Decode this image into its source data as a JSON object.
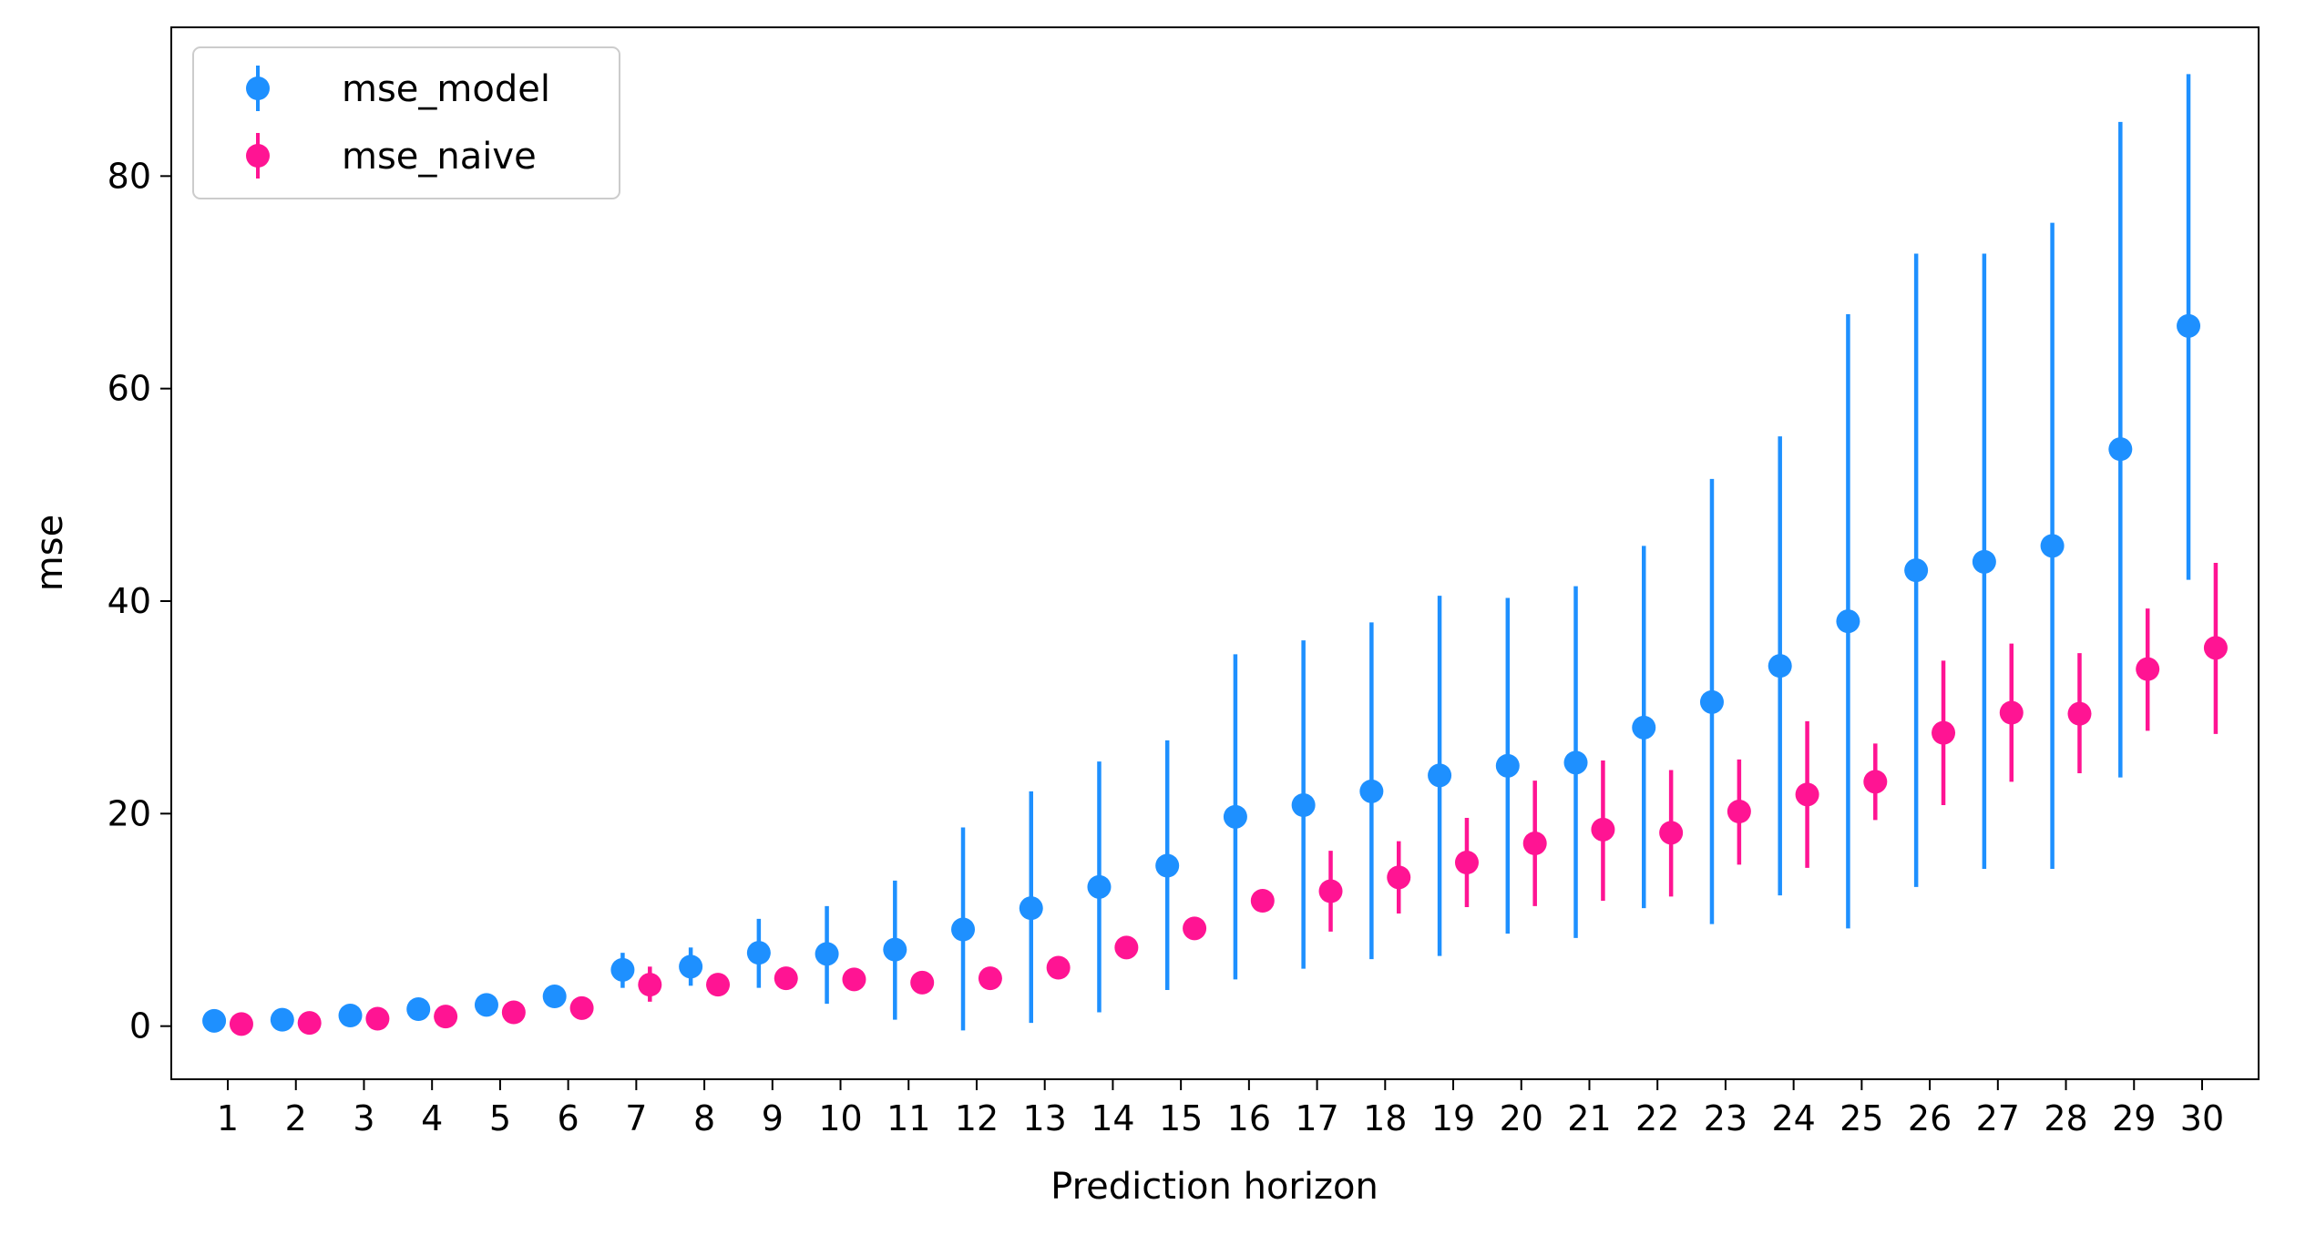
{
  "chart_data": {
    "type": "scatter",
    "title": "",
    "xlabel": "Prediction horizon",
    "ylabel": "mse",
    "categories": [
      "1",
      "2",
      "3",
      "4",
      "5",
      "6",
      "7",
      "8",
      "9",
      "10",
      "11",
      "12",
      "13",
      "14",
      "15",
      "16",
      "17",
      "18",
      "19",
      "20",
      "21",
      "22",
      "23",
      "24",
      "25",
      "26",
      "27",
      "28",
      "29",
      "30"
    ],
    "ylim": [
      -5,
      94
    ],
    "yticks": [
      0,
      20,
      40,
      60,
      80
    ],
    "grid": false,
    "legend": "top-left",
    "series": [
      {
        "name": "mse_model",
        "color": "#1E90FF",
        "offset": -0.2,
        "values": [
          0.5,
          0.6,
          1.0,
          1.6,
          2.0,
          2.8,
          5.3,
          5.6,
          6.9,
          6.8,
          7.2,
          9.1,
          11.1,
          13.1,
          15.1,
          19.7,
          20.8,
          22.1,
          23.6,
          24.5,
          24.8,
          28.1,
          30.5,
          33.9,
          38.1,
          42.9,
          43.7,
          45.2,
          54.3,
          65.9
        ],
        "err_low": [
          0.5,
          0.6,
          1.0,
          1.6,
          2.0,
          2.8,
          3.6,
          3.8,
          3.6,
          2.1,
          0.6,
          -0.4,
          0.3,
          1.3,
          3.4,
          4.4,
          5.4,
          6.3,
          6.6,
          8.7,
          8.3,
          11.1,
          9.6,
          12.3,
          9.2,
          13.1,
          14.8,
          14.8,
          23.4,
          42.0
        ],
        "err_high": [
          0.5,
          0.6,
          1.0,
          1.6,
          2.0,
          2.8,
          6.9,
          7.4,
          10.1,
          11.3,
          13.7,
          18.7,
          22.1,
          24.9,
          26.9,
          35.0,
          36.3,
          38.0,
          40.5,
          40.3,
          41.4,
          45.2,
          51.5,
          55.5,
          67.0,
          72.7,
          72.7,
          75.6,
          85.1,
          89.6
        ]
      },
      {
        "name": "mse_naive",
        "color": "#FF1493",
        "offset": 0.2,
        "values": [
          0.2,
          0.3,
          0.7,
          0.9,
          1.3,
          1.7,
          3.9,
          3.9,
          4.5,
          4.4,
          4.1,
          4.5,
          5.5,
          7.4,
          9.2,
          11.8,
          12.7,
          14.0,
          15.4,
          17.2,
          18.5,
          18.2,
          20.2,
          21.8,
          23.0,
          27.6,
          29.5,
          29.4,
          33.6,
          35.6
        ],
        "err_low": [
          0.2,
          0.3,
          0.7,
          0.9,
          1.3,
          1.7,
          2.3,
          3.9,
          4.5,
          4.4,
          4.1,
          4.5,
          5.5,
          7.4,
          9.2,
          11.8,
          8.9,
          10.6,
          11.2,
          11.3,
          11.8,
          12.2,
          15.2,
          14.9,
          19.4,
          20.8,
          23.0,
          23.8,
          27.8,
          27.5
        ],
        "err_high": [
          0.2,
          0.3,
          0.7,
          0.9,
          1.3,
          1.7,
          5.6,
          3.9,
          4.5,
          4.4,
          4.1,
          4.5,
          5.5,
          7.4,
          9.2,
          11.8,
          16.5,
          17.4,
          19.6,
          23.1,
          25.0,
          24.1,
          25.1,
          28.7,
          26.6,
          34.4,
          36.0,
          35.1,
          39.3,
          43.6
        ]
      }
    ]
  }
}
